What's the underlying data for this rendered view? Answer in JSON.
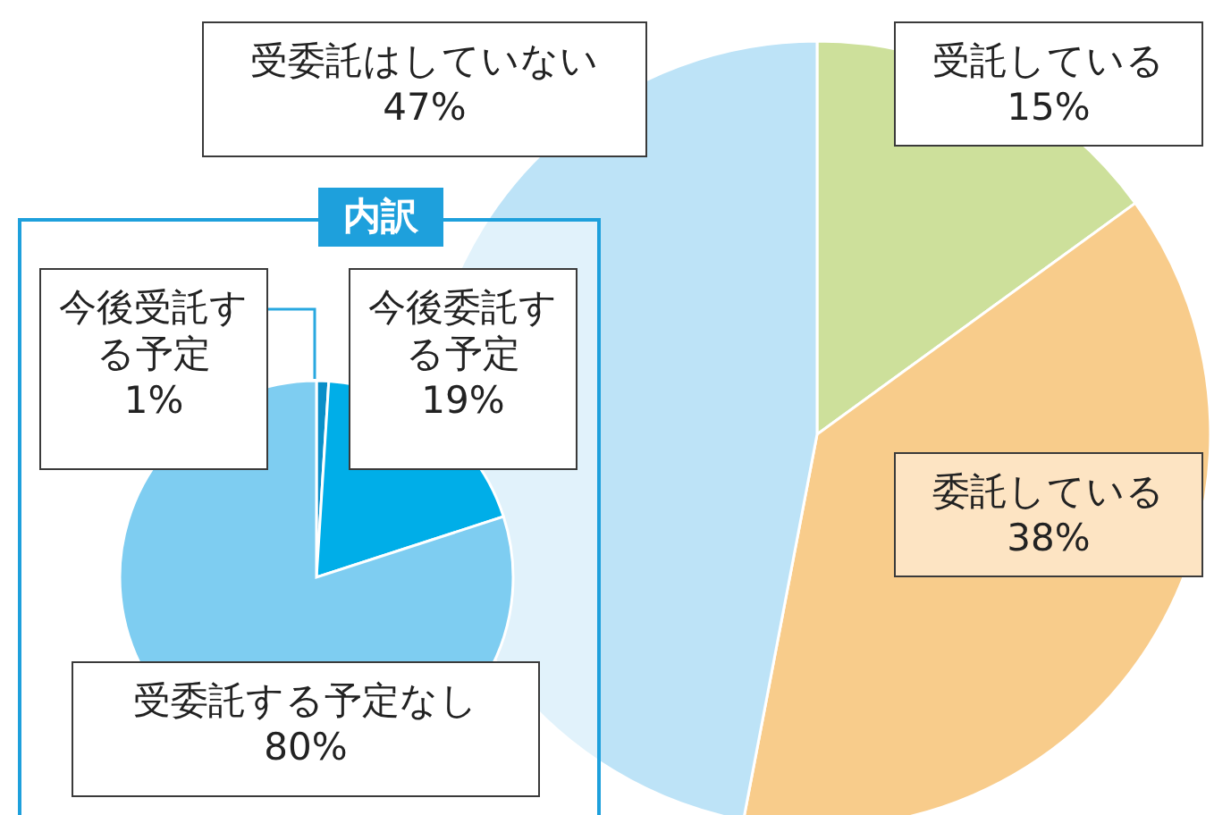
{
  "chart_data": [
    {
      "type": "pie",
      "categories": [
        "受託している",
        "委託している",
        "受委託はしていない"
      ],
      "values": [
        15,
        38,
        47
      ],
      "colors": [
        "#cde09b",
        "#f8cc8b",
        "#bde3f7"
      ],
      "value_labels": [
        "15%",
        "38%",
        "47%"
      ]
    },
    {
      "type": "pie",
      "title": "内訳",
      "categories": [
        "今後受託する予定",
        "今後委託する予定",
        "受委託する予定なし"
      ],
      "values": [
        1,
        19,
        80
      ],
      "colors": [
        "#0a8fc8",
        "#00aee8",
        "#7ecdf1"
      ],
      "value_labels": [
        "1%",
        "19%",
        "80%"
      ]
    }
  ]
}
